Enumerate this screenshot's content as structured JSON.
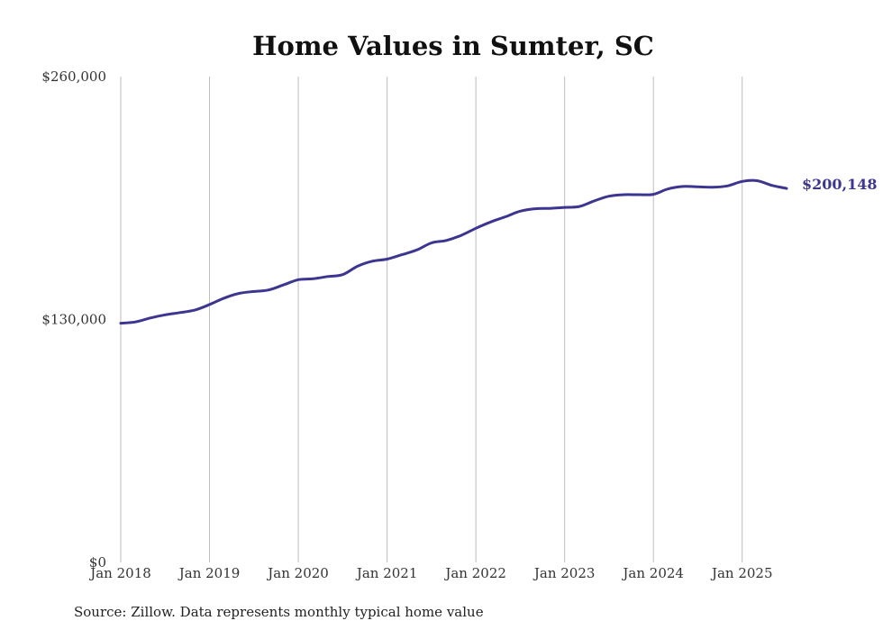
{
  "chart_data": {
    "type": "line",
    "title": "Home Values in Sumter, SC",
    "xlabel": "",
    "ylabel": "",
    "ylim": [
      0,
      260000
    ],
    "y_ticks": [
      {
        "value": 0,
        "label": "$0"
      },
      {
        "value": 130000,
        "label": "$130,000"
      },
      {
        "value": 260000,
        "label": "$260,000"
      }
    ],
    "x_ticks": [
      {
        "value": 2018,
        "label": "Jan 2018"
      },
      {
        "value": 2019,
        "label": "Jan 2019"
      },
      {
        "value": 2020,
        "label": "Jan 2020"
      },
      {
        "value": 2021,
        "label": "Jan 2021"
      },
      {
        "value": 2022,
        "label": "Jan 2022"
      },
      {
        "value": 2023,
        "label": "Jan 2023"
      },
      {
        "value": 2024,
        "label": "Jan 2024"
      },
      {
        "value": 2025,
        "label": "Jan 2025"
      }
    ],
    "xlim": [
      2018,
      2025.5
    ],
    "grid": "vertical",
    "series": [
      {
        "color": "#3d3691",
        "x": [
          "2018-01",
          "2018-03",
          "2018-05",
          "2018-07",
          "2018-09",
          "2018-11",
          "2019-01",
          "2019-03",
          "2019-05",
          "2019-07",
          "2019-09",
          "2019-11",
          "2020-01",
          "2020-03",
          "2020-05",
          "2020-07",
          "2020-09",
          "2020-11",
          "2021-01",
          "2021-03",
          "2021-05",
          "2021-07",
          "2021-09",
          "2021-11",
          "2022-01",
          "2022-03",
          "2022-05",
          "2022-07",
          "2022-09",
          "2022-11",
          "2023-01",
          "2023-03",
          "2023-05",
          "2023-07",
          "2023-09",
          "2023-11",
          "2024-01",
          "2024-03",
          "2024-05",
          "2024-07",
          "2024-09",
          "2024-11",
          "2025-01",
          "2025-03",
          "2025-05",
          "2025-07"
        ],
        "values": [
          128000,
          128700,
          130800,
          132500,
          133700,
          135000,
          138000,
          141500,
          144000,
          145000,
          145800,
          148500,
          151300,
          151800,
          153000,
          154000,
          158500,
          161200,
          162300,
          164700,
          167200,
          171000,
          172300,
          175000,
          178800,
          182200,
          185000,
          188000,
          189300,
          189500,
          190000,
          190500,
          193500,
          196000,
          196800,
          196800,
          197000,
          199900,
          201200,
          201000,
          200800,
          201500,
          203900,
          204300,
          201800,
          200148
        ]
      }
    ],
    "end_label": "$200,148",
    "source": "Source: Zillow. Data represents monthly typical home value"
  }
}
